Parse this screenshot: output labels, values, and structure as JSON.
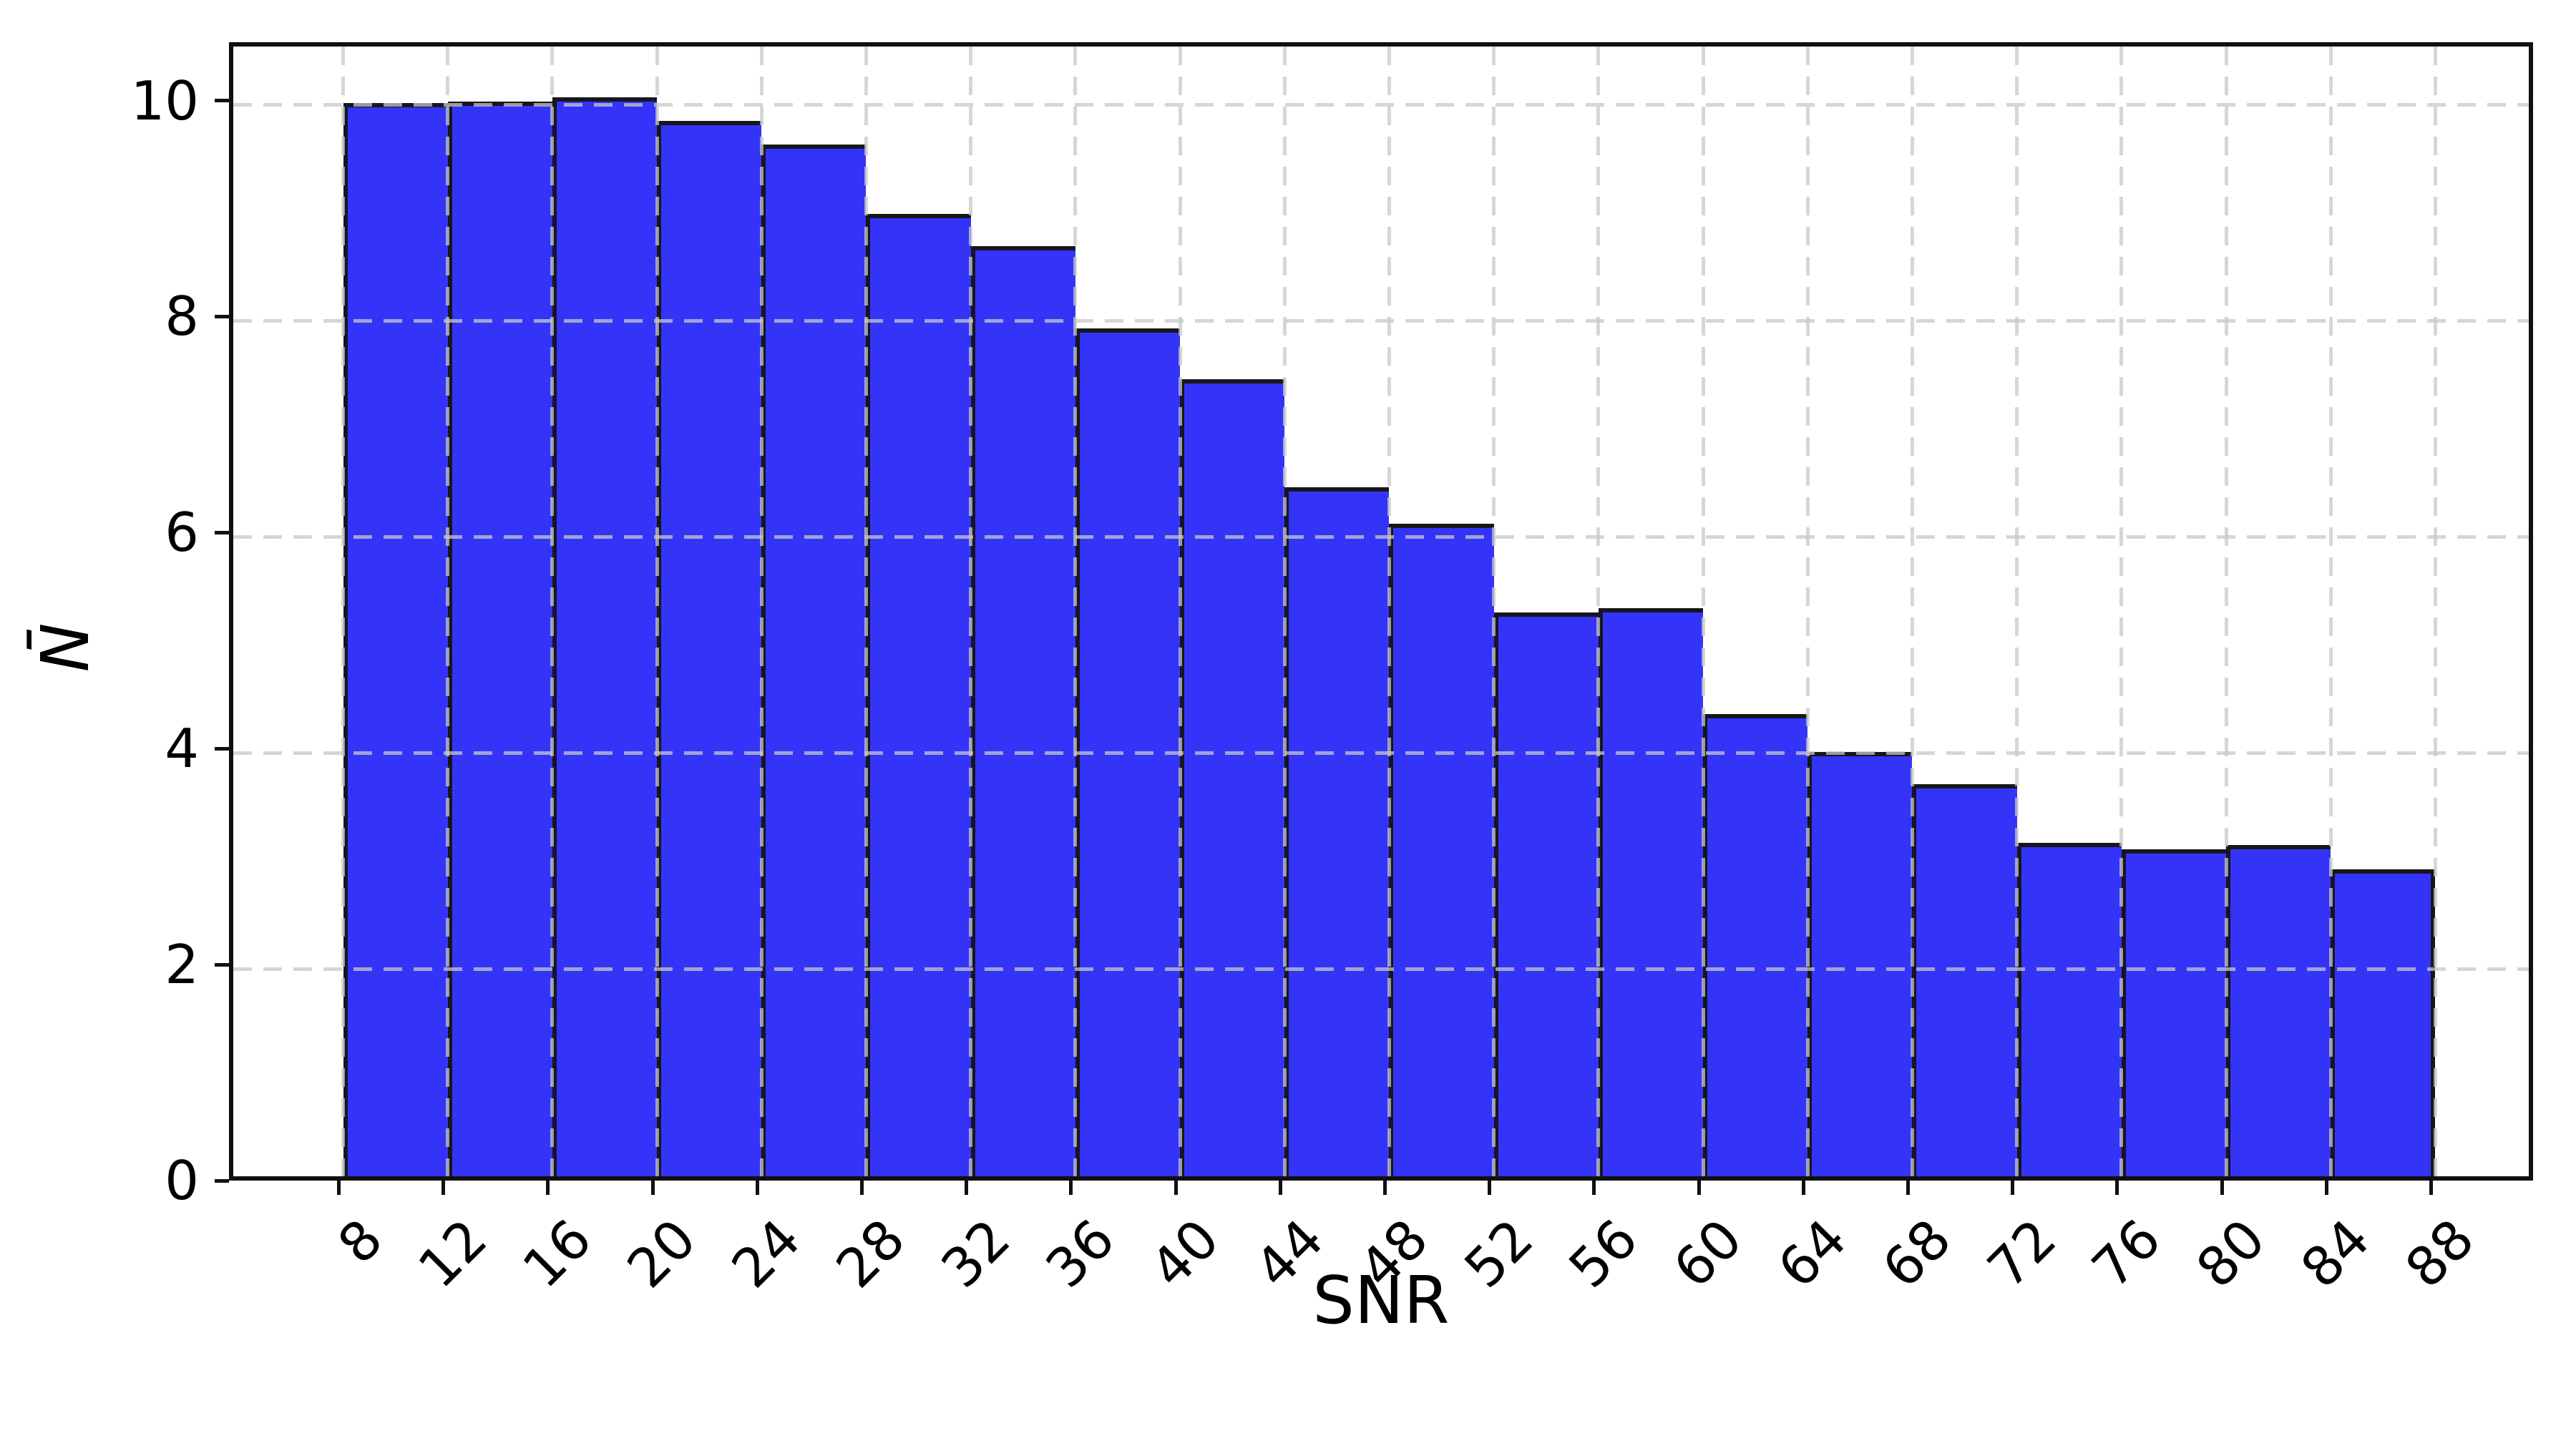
{
  "chart_data": {
    "type": "bar",
    "title": "",
    "xlabel": "SNR",
    "ylabel": "N̄",
    "bin_width": 4,
    "bin_left_edges": [
      8,
      12,
      16,
      20,
      24,
      28,
      32,
      36,
      40,
      44,
      48,
      52,
      56,
      60,
      64,
      68,
      72,
      76,
      80,
      84
    ],
    "values": [
      9.94,
      9.95,
      9.99,
      9.77,
      9.55,
      8.91,
      8.61,
      7.85,
      7.38,
      6.38,
      6.04,
      5.22,
      5.26,
      4.28,
      3.93,
      3.63,
      3.09,
      3.03,
      3.07,
      2.84
    ],
    "x_ticks": [
      8,
      12,
      16,
      20,
      24,
      28,
      32,
      36,
      40,
      44,
      48,
      52,
      56,
      60,
      64,
      68,
      72,
      76,
      80,
      84,
      88
    ],
    "x_tick_labels": [
      "8",
      "12",
      "16",
      "20",
      "24",
      "28",
      "32",
      "36",
      "40",
      "44",
      "48",
      "52",
      "56",
      "60",
      "64",
      "68",
      "72",
      "76",
      "80",
      "84",
      "88"
    ],
    "y_ticks": [
      0,
      2,
      4,
      6,
      8,
      10
    ],
    "y_tick_labels": [
      "0",
      "2",
      "4",
      "6",
      "8",
      "10"
    ],
    "xlim": [
      3.8,
      91.9
    ],
    "ylim": [
      0,
      10.54
    ],
    "grid": true,
    "grid_style": "dashed",
    "x_tick_label_rotation_deg": 45,
    "legend": null,
    "colors": {
      "bar_fill": "#3434f8",
      "bar_edge": "#16161d",
      "grid": "#c8c8c8",
      "spine": "#101010",
      "text": "#000000"
    }
  }
}
